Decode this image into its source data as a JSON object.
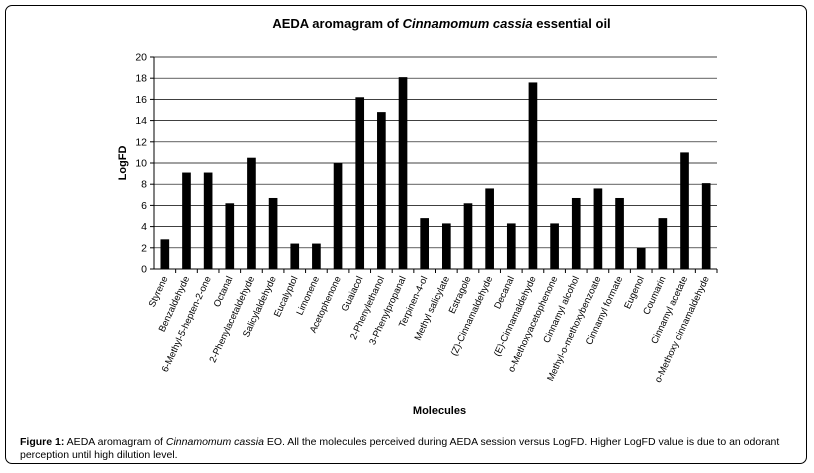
{
  "chart_data": {
    "type": "bar",
    "title_parts": {
      "prefix": "AEDA aromagram of ",
      "italic": "Cinnamomum cassia",
      "suffix": " essential oil"
    },
    "xlabel": "Molecules",
    "ylabel": "LogFD",
    "ylim": [
      0,
      20
    ],
    "yticks": [
      0,
      2,
      4,
      6,
      8,
      10,
      12,
      14,
      16,
      18,
      20
    ],
    "grid": true,
    "bar_color": "#000000",
    "categories": [
      "Styrene",
      "Benzaldehyde",
      "6-Methyl-5-hepten-2-one",
      "Octanal",
      "2-Phenylacetaldehyde",
      "Salicylaldehyde",
      "Eucalyptol",
      "Limonene",
      "Acetophenone",
      "Guaiacol",
      "2-Phenylethanol",
      "3-Phenylpropanal",
      "Terpinen-4-ol",
      "Methyl salicylate",
      "Estragole",
      "(Z)-Cinnamaldehyde",
      "Decanal",
      "(E)-Cinnamaldehyde",
      "o-Methoxyacetophenone",
      "Cinnamyl alcohol",
      "Methyl-o-methoxybenzoate",
      "Cinnamyl formate",
      "Eugenol",
      "Coumarin",
      "Cinnamyl acetate",
      "o-Methoxy cinnamaldehyde"
    ],
    "values": [
      2.8,
      9.1,
      9.1,
      6.2,
      10.5,
      6.7,
      2.4,
      2.4,
      10.0,
      16.2,
      14.8,
      18.1,
      4.8,
      4.3,
      6.2,
      7.6,
      4.3,
      17.6,
      4.3,
      6.7,
      7.6,
      6.7,
      2.0,
      4.8,
      11.0,
      8.1
    ]
  },
  "caption": {
    "lead": "Figure 1:",
    "text_prefix": " AEDA aromagram of ",
    "text_italic": "Cinnamomum cassia",
    "text_suffix": " EO. All the molecules perceived during AEDA session versus LogFD. Higher LogFD value is due to an odorant perception until high dilution level."
  }
}
